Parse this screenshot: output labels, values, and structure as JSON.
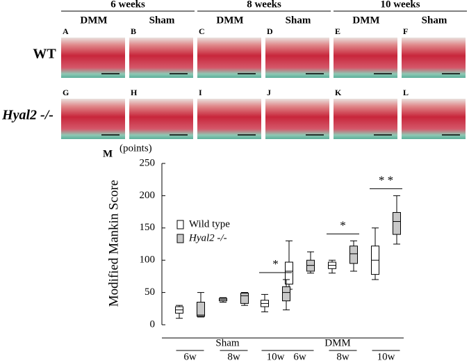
{
  "histology": {
    "weeks": [
      "6 weeks",
      "8 weeks",
      "10 weeks"
    ],
    "columns": [
      "DMM",
      "Sham",
      "DMM",
      "Sham",
      "DMM",
      "Sham"
    ],
    "rows": [
      "WT",
      "Hyal2 -/-"
    ],
    "letters": [
      [
        "A",
        "B",
        "C",
        "D",
        "E",
        "F"
      ],
      [
        "G",
        "H",
        "I",
        "J",
        "K",
        "L"
      ]
    ]
  },
  "chart_data": {
    "type": "box",
    "panel": "M",
    "unit": "(points)",
    "ylabel": "Modified Mankin Score",
    "groups": [
      "Sham",
      "DMM"
    ],
    "categories": [
      "6w",
      "8w",
      "10w",
      "6w",
      "8w",
      "10w"
    ],
    "ylim": [
      0,
      250
    ],
    "yticks": [
      0,
      50,
      100,
      150,
      200,
      250
    ],
    "series": [
      {
        "name": "Wild type",
        "color": "#ffffff",
        "boxes": [
          {
            "min": 10,
            "q1": 18,
            "median": 23,
            "q3": 28,
            "max": 30
          },
          {
            "min": 35,
            "q1": 37,
            "median": 39,
            "q3": 41,
            "max": 42
          },
          {
            "min": 20,
            "q1": 28,
            "median": 33,
            "q3": 38,
            "max": 47
          },
          {
            "min": 55,
            "q1": 63,
            "median": 83,
            "q3": 97,
            "max": 130
          },
          {
            "min": 80,
            "q1": 87,
            "median": 92,
            "q3": 97,
            "max": 100
          },
          {
            "min": 70,
            "q1": 78,
            "median": 100,
            "q3": 122,
            "max": 150
          }
        ]
      },
      {
        "name": "Hyal2 -/-",
        "color": "#c8c8c8",
        "boxes": [
          {
            "min": 12,
            "q1": 13,
            "median": 15,
            "q3": 35,
            "max": 50
          },
          {
            "min": 30,
            "q1": 33,
            "median": 45,
            "q3": 49,
            "max": 50
          },
          {
            "min": 23,
            "q1": 37,
            "median": 50,
            "q3": 59,
            "max": 70
          },
          {
            "min": 80,
            "q1": 83,
            "median": 92,
            "q3": 100,
            "max": 113
          },
          {
            "min": 83,
            "q1": 95,
            "median": 110,
            "q3": 122,
            "max": 130
          },
          {
            "min": 125,
            "q1": 140,
            "median": 160,
            "q3": 174,
            "max": 200
          }
        ]
      }
    ],
    "significance": [
      {
        "category": 2,
        "label": "*"
      },
      {
        "category": 4,
        "label": "*"
      },
      {
        "category": 5,
        "label": "* *"
      }
    ]
  }
}
